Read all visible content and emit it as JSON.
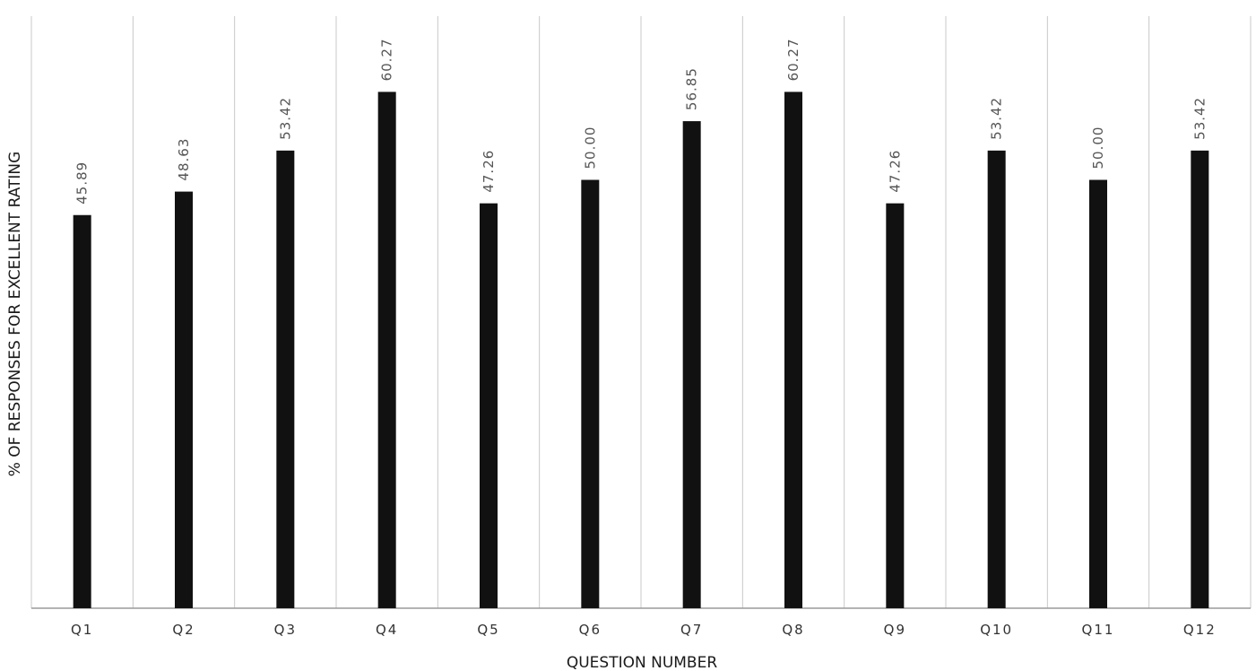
{
  "chart_data": {
    "type": "bar",
    "title": "",
    "xlabel": "QUESTION NUMBER",
    "ylabel": "% OF RESPONSES FOR EXCELLENT RATING",
    "categories": [
      "Q1",
      "Q2",
      "Q3",
      "Q4",
      "Q5",
      "Q6",
      "Q7",
      "Q8",
      "Q9",
      "Q10",
      "Q11",
      "Q12"
    ],
    "values": [
      45.89,
      48.63,
      53.42,
      60.27,
      47.26,
      50.0,
      56.85,
      60.27,
      47.26,
      53.42,
      50.0,
      53.42
    ],
    "value_labels": [
      "45.89",
      "48.63",
      "53.42",
      "60.27",
      "47.26",
      "50.00",
      "56.85",
      "60.27",
      "47.26",
      "53.42",
      "50.00",
      "53.42"
    ],
    "ylim": [
      0,
      65
    ],
    "vertical_gridlines": true,
    "bar_color": "#111111",
    "grid_color": "#c8c8c8",
    "axis_color": "#9a9a9a"
  }
}
